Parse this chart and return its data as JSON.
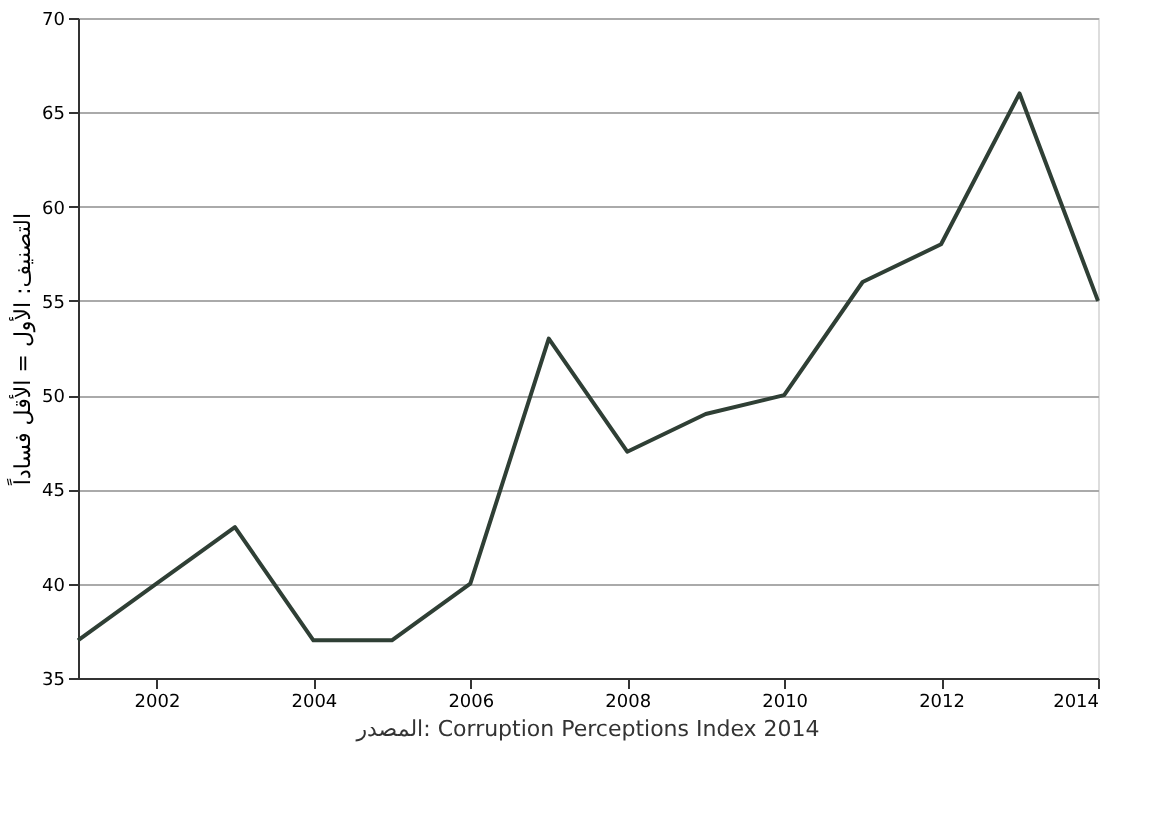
{
  "chart_data": {
    "type": "line",
    "x": [
      2001,
      2002,
      2003,
      2004,
      2005,
      2006,
      2007,
      2008,
      2009,
      2010,
      2011,
      2012,
      2013,
      2014
    ],
    "series": [
      {
        "color": "#2f3f35",
        "values": [
          37,
          40,
          43,
          37,
          37,
          40,
          53,
          47,
          49,
          50,
          56,
          58,
          66,
          55
        ]
      }
    ],
    "ylabel": "التصنيف: الأول = الأقل فساداً",
    "annotations": [
      "المصدر: Corruption Perceptions Index 2014"
    ],
    "xlim": [
      2001,
      2014
    ],
    "xticks": [
      2002,
      2004,
      2006,
      2008,
      2010,
      2012,
      2014
    ],
    "ylim": [
      35,
      70
    ],
    "yticks": [
      35,
      40,
      45,
      50,
      55,
      60,
      65,
      70
    ],
    "grid": "y",
    "legend": false,
    "marker": "none",
    "line_style": "solid"
  }
}
